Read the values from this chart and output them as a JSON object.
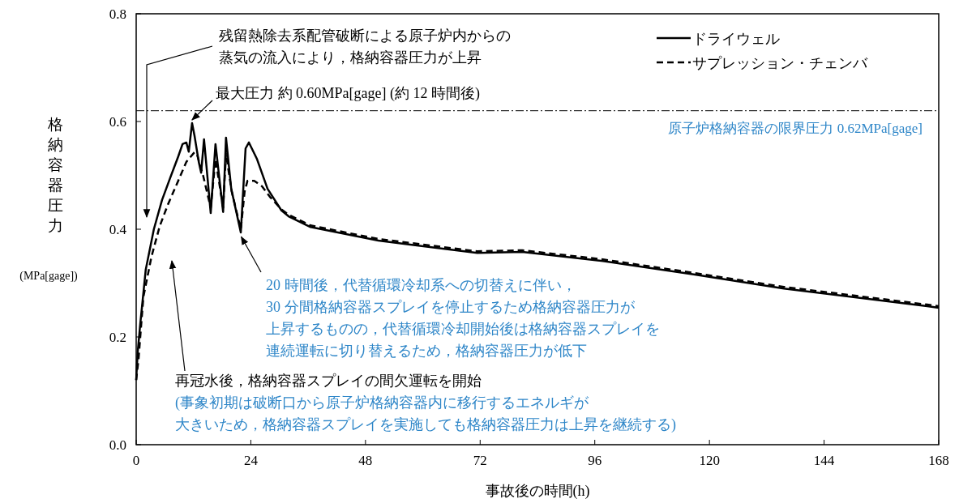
{
  "chart_data": {
    "type": "line",
    "xlabel": "事故後の時間(h)",
    "ylabel": "格納容器圧力\n(MPa[gage])",
    "xlim": [
      0,
      168
    ],
    "xticks": [
      0,
      24,
      48,
      72,
      96,
      120,
      144,
      168
    ],
    "ylim": [
      0,
      0.8
    ],
    "yticks": [
      {
        "value": 0,
        "label": "0.0"
      },
      {
        "value": 0.2,
        "label": "0.2"
      },
      {
        "value": 0.4,
        "label": "0.4"
      },
      {
        "value": 0.6,
        "label": "0.6"
      },
      {
        "value": 0.8,
        "label": "0.8"
      }
    ],
    "grid": false,
    "legend": "top right",
    "series": [
      {
        "name": "ドライウェル",
        "color": "#000000",
        "line_style": "solid",
        "x": [
          0,
          0.3,
          0.85,
          2,
          3.7,
          5.4,
          7.1,
          8.8,
          9.7,
          10.5,
          11,
          11.7,
          12.2,
          13.1,
          13.6,
          14.2,
          15.6,
          16.6,
          18.2,
          18.8,
          19.9,
          21.9,
          22.9,
          23.6,
          25.3,
          27.5,
          30.4,
          31.9,
          36.5,
          50.7,
          71.4,
          80.8,
          97.7,
          116.7,
          135.6,
          165.6,
          168
        ],
        "values": [
          0.12,
          0.17,
          0.224,
          0.325,
          0.4,
          0.454,
          0.495,
          0.535,
          0.558,
          0.561,
          0.544,
          0.597,
          0.574,
          0.525,
          0.505,
          0.567,
          0.43,
          0.558,
          0.432,
          0.57,
          0.475,
          0.394,
          0.55,
          0.561,
          0.53,
          0.475,
          0.435,
          0.424,
          0.404,
          0.379,
          0.356,
          0.358,
          0.341,
          0.316,
          0.29,
          0.257,
          0.254
        ]
      },
      {
        "name": "サプレッション・チェンバ",
        "color": "#000000",
        "line_style": "dashed",
        "x": [
          0,
          0.5,
          1.5,
          3.2,
          4.9,
          6.6,
          8.8,
          10.5,
          12.2,
          12.7,
          14,
          15.6,
          16.6,
          18.2,
          18.8,
          20,
          21.9,
          22.7,
          23.3,
          24.7,
          26.3,
          28,
          30.4,
          31.9,
          36.5,
          50.7,
          71.4,
          80.8,
          97.7,
          116.7,
          135.6,
          165.6,
          168
        ],
        "values": [
          0.12,
          0.16,
          0.274,
          0.349,
          0.405,
          0.445,
          0.49,
          0.525,
          0.543,
          0.54,
          0.5,
          0.44,
          0.53,
          0.44,
          0.54,
          0.47,
          0.4,
          0.47,
          0.49,
          0.49,
          0.48,
          0.46,
          0.437,
          0.427,
          0.407,
          0.382,
          0.359,
          0.361,
          0.344,
          0.319,
          0.293,
          0.26,
          0.257
        ]
      }
    ],
    "ref_lines": [
      {
        "axis": "y",
        "value": 0.62,
        "label": "原子炉格納容器の限界圧力 0.62MPa[gage]",
        "line_style": "dashdot"
      }
    ],
    "annotations": [
      "残留熱除去系配管破断による原子炉内からの蒸気の流入により，格納容器圧力が上昇",
      {
        "text": "最大圧力 約 0.60MPa[gage] (約 12 時間後)",
        "x": 11.7,
        "y": 0.597
      },
      {
        "text": "20 時間後，代替循環冷却系への切替えに伴い，30 分間格納容器スプレイを停止するため格納容器圧力が上昇するものの，代替循環冷却開始後は格納容器スプレイを連続運転に切り替えるため，格納容器圧力が低下",
        "x": 22,
        "y": 0.395
      },
      "再冠水後，格納容器スプレイの間欠運転を開始(事象初期は破断口から原子炉格納容器内に移行するエネルギが大きいため，格納容器スプレイを実施しても格納容器圧力は上昇を継続する)"
    ]
  }
}
